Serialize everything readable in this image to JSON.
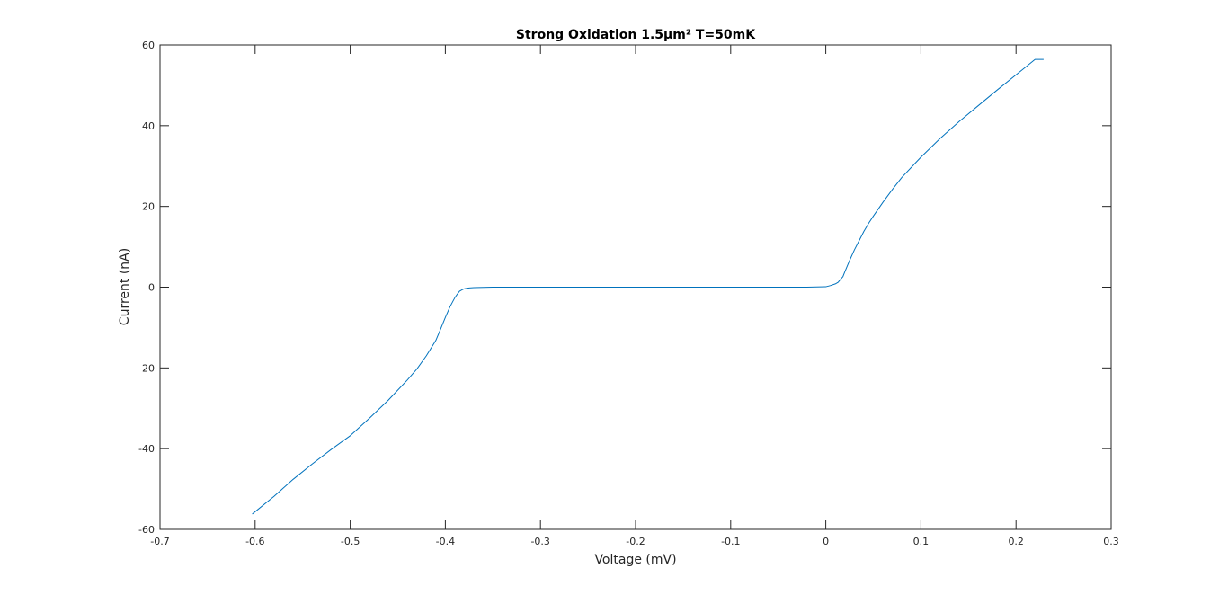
{
  "chart_data": {
    "type": "line",
    "title": "Strong Oxidation 1.5μm² T=50mK",
    "xlabel": "Voltage (mV)",
    "ylabel": "Current (nA)",
    "xlim": [
      -0.7,
      0.3
    ],
    "ylim": [
      -60,
      60
    ],
    "xticks": [
      -0.7,
      -0.6,
      -0.5,
      -0.4,
      -0.3,
      -0.2,
      -0.1,
      0,
      0.1,
      0.2,
      0.3
    ],
    "xtick_labels": [
      "-0.7",
      "-0.6",
      "-0.5",
      "-0.4",
      "-0.3",
      "-0.2",
      "-0.1",
      "0",
      "0.1",
      "0.2",
      "0.3"
    ],
    "yticks": [
      -60,
      -40,
      -20,
      0,
      20,
      40,
      60
    ],
    "ytick_labels": [
      "-60",
      "-40",
      "-20",
      "0",
      "20",
      "40",
      "60"
    ],
    "grid": false,
    "series": [
      {
        "color": "#0072bd",
        "x": [
          -0.603,
          -0.58,
          -0.56,
          -0.54,
          -0.52,
          -0.5,
          -0.48,
          -0.46,
          -0.44,
          -0.43,
          -0.42,
          -0.41,
          -0.405,
          -0.4,
          -0.395,
          -0.39,
          -0.387,
          -0.385,
          -0.382,
          -0.38,
          -0.375,
          -0.37,
          -0.36,
          -0.35,
          -0.3,
          -0.2,
          -0.1,
          -0.05,
          -0.02,
          0,
          0.005,
          0.01,
          0.013,
          0.015,
          0.018,
          0.02,
          0.025,
          0.03,
          0.035,
          0.04,
          0.045,
          0.05,
          0.06,
          0.07,
          0.08,
          0.1,
          0.12,
          0.14,
          0.16,
          0.18,
          0.2,
          0.22,
          0.229
        ],
        "y": [
          -56.2,
          -51.8,
          -47.6,
          -43.8,
          -40.2,
          -36.8,
          -32.5,
          -28.0,
          -23.0,
          -20.3,
          -17.0,
          -13.2,
          -10.4,
          -7.5,
          -4.8,
          -2.6,
          -1.6,
          -1.0,
          -0.6,
          -0.4,
          -0.2,
          -0.1,
          -0.05,
          0,
          0,
          0,
          0,
          0,
          0,
          0.1,
          0.4,
          0.8,
          1.2,
          1.8,
          2.6,
          3.8,
          6.6,
          9.2,
          11.5,
          13.8,
          15.8,
          17.6,
          21.0,
          24.2,
          27.2,
          32.2,
          36.8,
          41.0,
          44.9,
          48.8,
          52.6,
          56.4,
          56.4
        ]
      }
    ]
  }
}
